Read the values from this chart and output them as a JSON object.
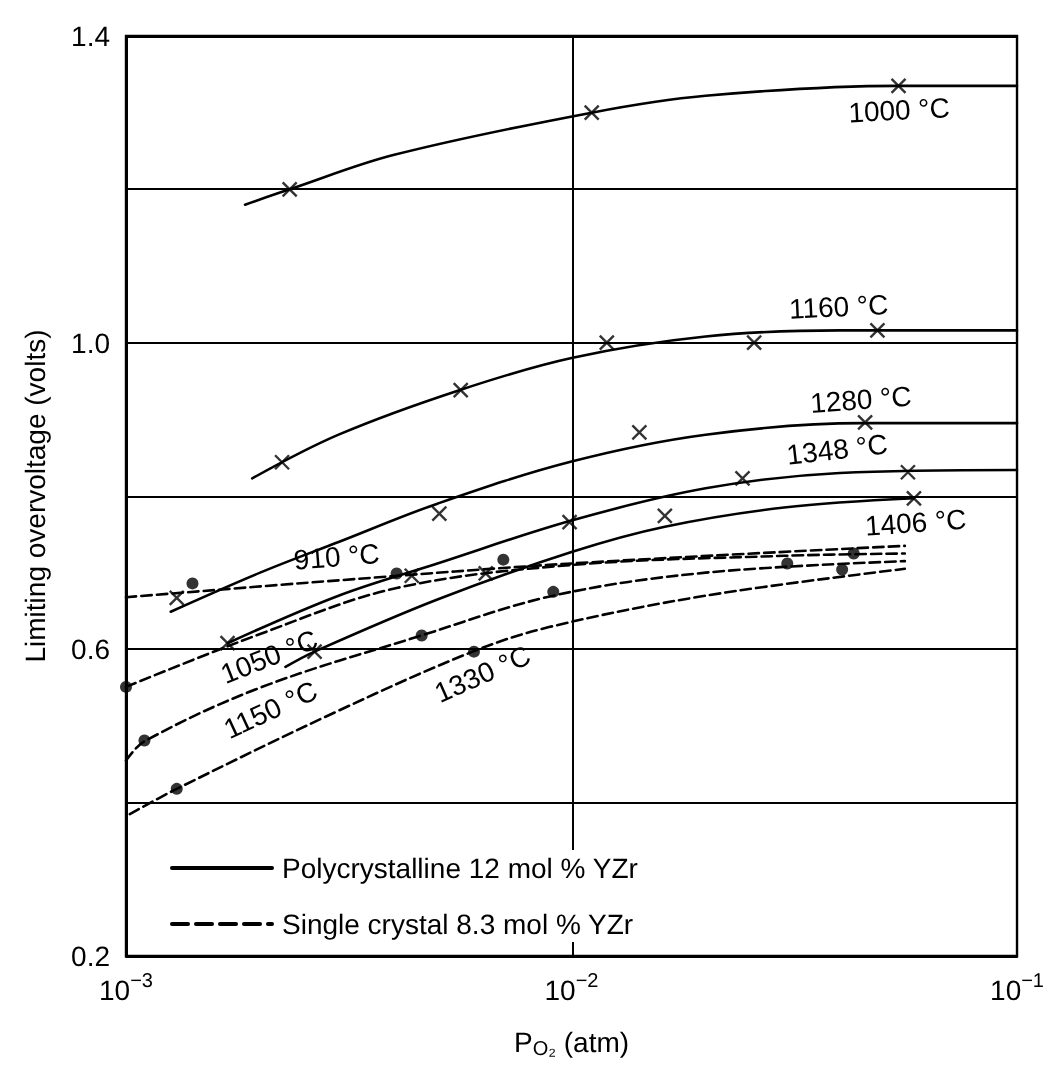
{
  "chart_data": {
    "type": "line",
    "xlabel": "P$_{O₂}$ (atm)",
    "ylabel": "Limiting overvoltage (volts)",
    "log": "x",
    "xlim": [
      0.001,
      0.1
    ],
    "xticks": [
      {
        "value": 0.001,
        "label": "10$^{−3}$"
      },
      {
        "value": 0.01,
        "label": "10$^{−2}$"
      },
      {
        "value": 0.1,
        "label": "10$^{−1}$"
      }
    ],
    "ylim": [
      0.2,
      1.4
    ],
    "yticks": [
      0.2,
      {
        "value": 0.4,
        "label": null
      },
      0.6,
      {
        "value": 0.8,
        "label": null
      },
      {
        "value": 1.0,
        "label": "1.0"
      },
      {
        "value": 1.2,
        "label": null
      },
      1.4
    ],
    "grid": true,
    "legend": "bottom left",
    "series": [
      {
        "name": "Polycrystalline 12 mol % YZr",
        "color": "#000000",
        "line_style": "solid",
        "marker": "none",
        "x": [
          0.00185,
          0.00233,
          0.004,
          0.0111,
          0.02,
          0.054,
          0.1
        ],
        "values": [
          1.18,
          1.2,
          1.245,
          1.3,
          1.322,
          1.335,
          1.335
        ]
      },
      {
        "color": "#000000",
        "line_style": "solid",
        "marker": "none",
        "x": [
          0.00192,
          0.003,
          0.0056,
          0.01,
          0.02,
          0.04,
          0.1
        ],
        "values": [
          0.823,
          0.88,
          0.938,
          0.98,
          1.008,
          1.016,
          1.016
        ]
      },
      {
        "color": "#000000",
        "line_style": "solid",
        "marker": "none",
        "x": [
          0.00126,
          0.002,
          0.003,
          0.005,
          0.01,
          0.02,
          0.045,
          0.1
        ],
        "values": [
          0.649,
          0.7,
          0.74,
          0.79,
          0.845,
          0.88,
          0.895,
          0.895
        ]
      },
      {
        "color": "#000000",
        "line_style": "solid",
        "marker": "none",
        "x": [
          0.00169,
          0.003,
          0.005,
          0.01,
          0.02,
          0.04,
          0.1
        ],
        "values": [
          0.608,
          0.67,
          0.712,
          0.768,
          0.81,
          0.83,
          0.834
        ]
      },
      {
        "color": "#000000",
        "line_style": "solid",
        "marker": "none",
        "x": [
          0.00228,
          0.00265,
          0.005,
          0.01,
          0.0162,
          0.03,
          0.0587
        ],
        "values": [
          0.577,
          0.597,
          0.665,
          0.727,
          0.76,
          0.785,
          0.797
        ]
      },
      {
        "name": "Single crystal 8.3 mol % YZr",
        "color": "#000000",
        "line_style": "dashed",
        "marker": "none",
        "x": [
          0.001,
          0.003,
          0.01,
          0.056
        ],
        "values": [
          0.668,
          0.69,
          0.712,
          0.735
        ]
      },
      {
        "color": "#000000",
        "line_style": "dashed",
        "marker": "none",
        "x": [
          0.001,
          0.002,
          0.00405,
          0.01,
          0.03,
          0.056
        ],
        "values": [
          0.551,
          0.62,
          0.68,
          0.71,
          0.722,
          0.725
        ]
      },
      {
        "color": "#000000",
        "line_style": "dashed",
        "marker": "none",
        "x": [
          0.001,
          0.0011,
          0.002,
          0.0046,
          0.0091,
          0.02,
          0.056
        ],
        "values": [
          0.455,
          0.48,
          0.55,
          0.618,
          0.67,
          0.7,
          0.715
        ]
      },
      {
        "color": "#000000",
        "line_style": "dashed",
        "marker": "none",
        "x": [
          0.00102,
          0.0013,
          0.003,
          0.006,
          0.0089,
          0.02,
          0.056
        ],
        "values": [
          0.385,
          0.418,
          0.52,
          0.597,
          0.629,
          0.67,
          0.705
        ]
      },
      {
        "type": "scatter",
        "color": "#000000",
        "marker": "cross",
        "x": [
          0.00233,
          0.0111,
          0.0542,
          0.00224,
          0.00564,
          0.012,
          0.0257,
          0.0486,
          0.00505,
          0.0142,
          0.0456,
          0.00169,
          0.0099,
          0.0242,
          0.0569,
          0.00265,
          0.0162,
          0.0587,
          0.0013,
          0.00438,
          0.00642
        ],
        "values": [
          1.2,
          1.3,
          1.335,
          0.844,
          0.938,
          1.0,
          1.0,
          1.016,
          0.777,
          0.883,
          0.896,
          0.608,
          0.766,
          0.823,
          0.831,
          0.597,
          0.774,
          0.797,
          0.667,
          0.696,
          0.699
        ]
      },
      {
        "type": "scatter",
        "color": "#000000",
        "marker": "circle",
        "x": [
          0.001,
          0.0011,
          0.0013,
          0.00141,
          0.00405,
          0.00461,
          0.00604,
          0.00703,
          0.0091,
          0.0305,
          0.0405,
          0.043
        ],
        "values": [
          0.551,
          0.481,
          0.418,
          0.686,
          0.699,
          0.618,
          0.597,
          0.717,
          0.675,
          0.712,
          0.704,
          0.725
        ]
      }
    ],
    "annotations": [
      {
        "text": "1000 °C",
        "x": 0.054,
        "y": 1.335
      },
      {
        "text": "1160 °C",
        "x": 0.04,
        "y": 1.016
      },
      {
        "text": "1280 °C",
        "x": 0.045,
        "y": 0.895
      },
      {
        "text": "1348 °C",
        "x": 0.04,
        "y": 0.83
      },
      {
        "text": "1406 °C",
        "x": 0.0587,
        "y": 0.797
      },
      {
        "text": "910 °C",
        "x": 0.003,
        "y": 0.69
      },
      {
        "text": "1050 °C",
        "x": 0.002,
        "y": 0.62
      },
      {
        "text": "1150 °C",
        "x": 0.002,
        "y": 0.55
      },
      {
        "text": "1330 °C",
        "x": 0.006,
        "y": 0.597
      }
    ]
  }
}
